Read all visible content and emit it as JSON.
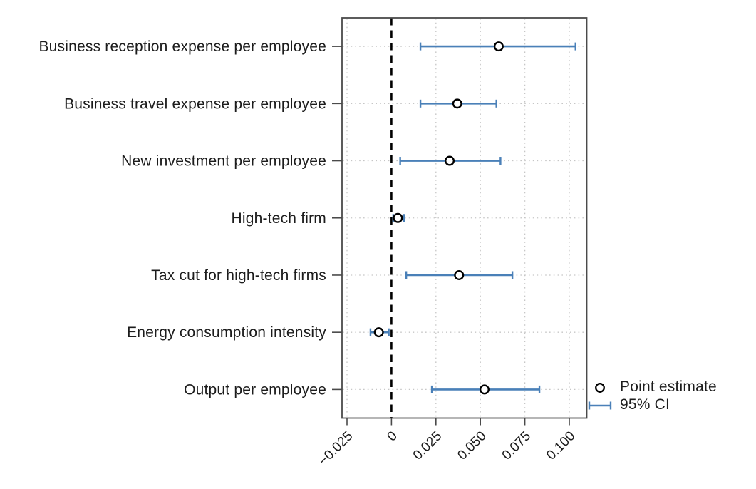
{
  "figure": {
    "background": "#ffffff"
  },
  "chart_data": {
    "type": "scatter",
    "subtype": "horizontal-coefficient-plot-with-ci",
    "title": "",
    "xlabel": "",
    "ylabel": "",
    "grid": true,
    "xlim": [
      -0.0278,
      0.1098
    ],
    "x_ticks": [
      -0.025,
      0,
      0.025,
      0.05,
      0.075,
      0.1
    ],
    "x_tick_labels": [
      "−0.025",
      "0",
      "0.025",
      "0.050",
      "0.075",
      "0.100"
    ],
    "zero_reference_line": 0,
    "categories": [
      "Business reception expense per employee",
      "Business travel expense per employee",
      "New investment per employee",
      "High-tech firm",
      "Tax cut for high-tech firms",
      "Energy consumption intensity",
      "Output per employee"
    ],
    "series": [
      {
        "name": "Point estimate",
        "values": [
          0.0603,
          0.037,
          0.0327,
          0.0036,
          0.038,
          -0.0071,
          0.0523
        ]
      },
      {
        "name": "95% CI lower",
        "values": [
          0.0163,
          0.0163,
          0.0049,
          0.001,
          0.0083,
          -0.0118,
          0.0227
        ]
      },
      {
        "name": "95% CI upper",
        "values": [
          0.1035,
          0.059,
          0.0613,
          0.007,
          0.068,
          -0.0015,
          0.0832
        ]
      }
    ],
    "legend": {
      "position": "right-bottom-outside",
      "entries": [
        {
          "marker": "open-circle",
          "label": "Point estimate"
        },
        {
          "marker": "error-bar-with-caps",
          "label": "95% CI"
        }
      ]
    }
  },
  "colors": {
    "ci": "#4a80b8",
    "marker_stroke": "#000000",
    "marker_fill": "#ffffff",
    "zero_line": "#000000",
    "frame": "#4a4a4a",
    "grid": "#c6c6c6",
    "text": "#1c1c1c",
    "background": "#ffffff"
  }
}
